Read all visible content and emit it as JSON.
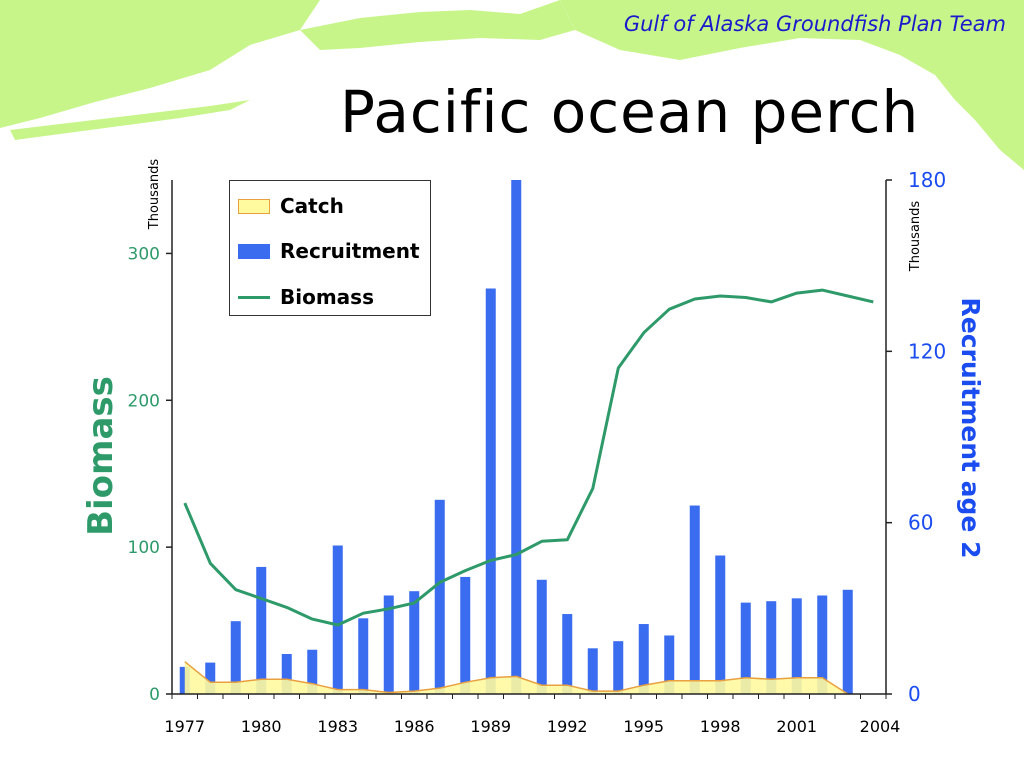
{
  "header": {
    "team": "Gulf of Alaska Groundfish Plan Team",
    "title": "Pacific ocean perch"
  },
  "colors": {
    "map_land": "#c8f58a",
    "biomass": "#2e9a6a",
    "recruitment": "#3a6cf0",
    "catch_fill": "#fff9a0",
    "catch_line": "#e8a040",
    "left_axis_text": "#2e9a6a",
    "right_axis_text": "#1a4cf0"
  },
  "chart_data": {
    "type": "bar",
    "years": [
      1977,
      1978,
      1979,
      1980,
      1981,
      1982,
      1983,
      1984,
      1985,
      1986,
      1987,
      1988,
      1989,
      1990,
      1991,
      1992,
      1993,
      1994,
      1995,
      1996,
      1997,
      1998,
      1999,
      2000,
      2001,
      2002,
      2003,
      2004
    ],
    "x_tick_labels": [
      "1977",
      "1980",
      "1983",
      "1986",
      "1989",
      "1992",
      "1995",
      "1998",
      "2001",
      "2004"
    ],
    "left_axis": {
      "label": "Biomass",
      "units": "Thousands",
      "ticks": [
        0,
        100,
        200,
        300
      ],
      "range": [
        0,
        350
      ]
    },
    "right_axis": {
      "label": "Recruitment age 2",
      "units": "Thousands",
      "ticks": [
        0,
        60,
        120,
        180
      ],
      "range": [
        0,
        180
      ]
    },
    "legend": {
      "placement": "top-left",
      "entries": [
        "Catch",
        "Recruitment",
        "Biomass"
      ]
    },
    "series": [
      {
        "name": "Recruitment",
        "type": "bar",
        "axis": "right",
        "values": [
          9.5,
          11,
          25.5,
          44.5,
          14,
          15.5,
          52,
          26.5,
          34.5,
          36,
          68,
          41,
          142,
          180,
          40,
          28,
          16,
          18.5,
          24.5,
          20.5,
          66,
          48.5,
          32,
          32.5,
          33.5,
          34.5,
          36.5,
          null
        ]
      },
      {
        "name": "Biomass",
        "type": "line",
        "axis": "left",
        "values": [
          130,
          89,
          71,
          65,
          59,
          51,
          47,
          55,
          58,
          62,
          76,
          84,
          91,
          95,
          104,
          105,
          140,
          222,
          246,
          262,
          269,
          271,
          270,
          267,
          273,
          275,
          271,
          267
        ]
      },
      {
        "name": "Catch",
        "type": "area",
        "axis": "left",
        "values": [
          22,
          8,
          8,
          10,
          10,
          7,
          3,
          3,
          1,
          2,
          4,
          8,
          11,
          12,
          6,
          6,
          2,
          2,
          6,
          9,
          9,
          9,
          11,
          10,
          11,
          11,
          0,
          null
        ]
      }
    ]
  }
}
